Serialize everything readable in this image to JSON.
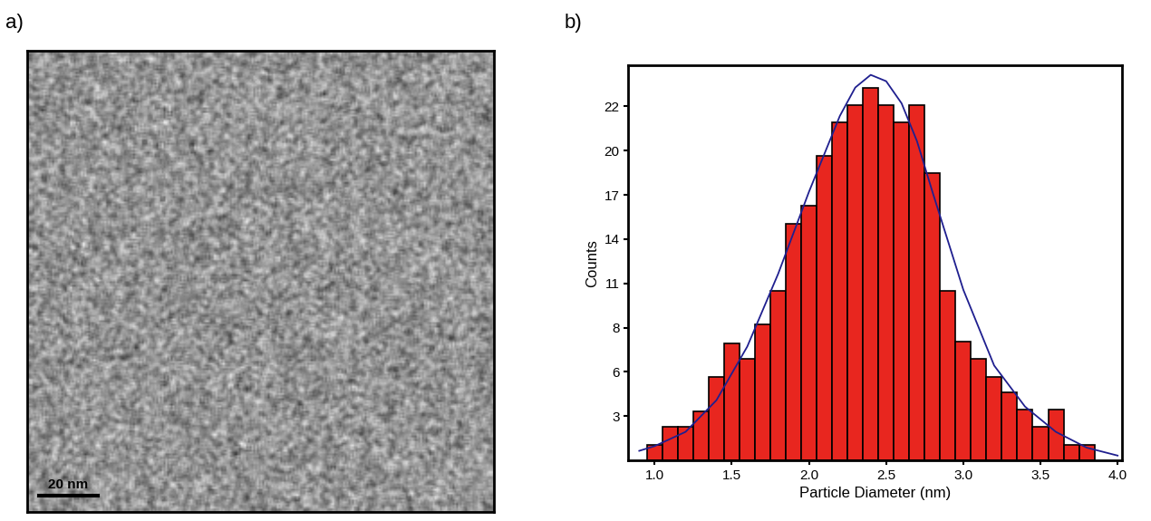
{
  "panel_labels": [
    "a)",
    "b)"
  ],
  "micrograph": {
    "scale_bar": "20 nm"
  },
  "chart_data": {
    "type": "histogram",
    "xlabel": "Particle Diameter (nm)",
    "ylabel": "Counts",
    "bins": [
      0.95,
      1.05,
      1.15,
      1.25,
      1.35,
      1.45,
      1.55,
      1.65,
      1.75,
      1.85,
      1.95,
      2.05,
      2.15,
      2.25,
      2.35,
      2.45,
      2.55,
      2.65,
      2.75,
      2.85,
      2.95,
      3.05,
      3.15,
      3.25,
      3.35,
      3.45,
      3.55,
      3.65,
      3.75,
      3.85
    ],
    "counts": [
      1.0,
      2.1,
      2.1,
      3.1,
      5.3,
      7.4,
      6.4,
      8.6,
      10.7,
      15.0,
      16.1,
      19.3,
      21.4,
      22.5,
      23.6,
      22.5,
      21.4,
      22.5,
      18.2,
      10.7,
      7.5,
      6.4,
      5.3,
      4.3,
      3.2,
      2.1,
      3.2,
      1.0,
      1.0
    ],
    "color": "#e8261f",
    "series": [
      {
        "type": "line",
        "color": "#1f1f8f",
        "x": [
          0.9,
          1.0,
          1.2,
          1.4,
          1.6,
          1.8,
          2.0,
          2.2,
          2.3,
          2.4,
          2.5,
          2.6,
          2.7,
          2.8,
          3.0,
          3.2,
          3.4,
          3.6,
          3.8,
          4.0
        ],
        "values": [
          0.6,
          0.9,
          1.8,
          3.8,
          7.2,
          11.8,
          17.0,
          21.8,
          23.6,
          24.4,
          24.0,
          22.6,
          20.2,
          17.0,
          10.8,
          6.0,
          3.4,
          1.8,
          0.8,
          0.3
        ]
      }
    ],
    "xlim": [
      0.83,
      4.03
    ],
    "ylim": [
      0,
      25
    ],
    "xticks": [
      1.0,
      1.5,
      2.0,
      2.5,
      3.0,
      3.5,
      4.0
    ],
    "yticks": [
      {
        "value": 2.8,
        "label": "3"
      },
      {
        "value": 5.6,
        "label": "6"
      },
      {
        "value": 8.4,
        "label": "8"
      },
      {
        "value": 11.2,
        "label": "11"
      },
      {
        "value": 14.0,
        "label": "14"
      },
      {
        "value": 16.8,
        "label": "17"
      },
      {
        "value": 19.6,
        "label": "20"
      },
      {
        "value": 22.4,
        "label": "22"
      }
    ]
  }
}
